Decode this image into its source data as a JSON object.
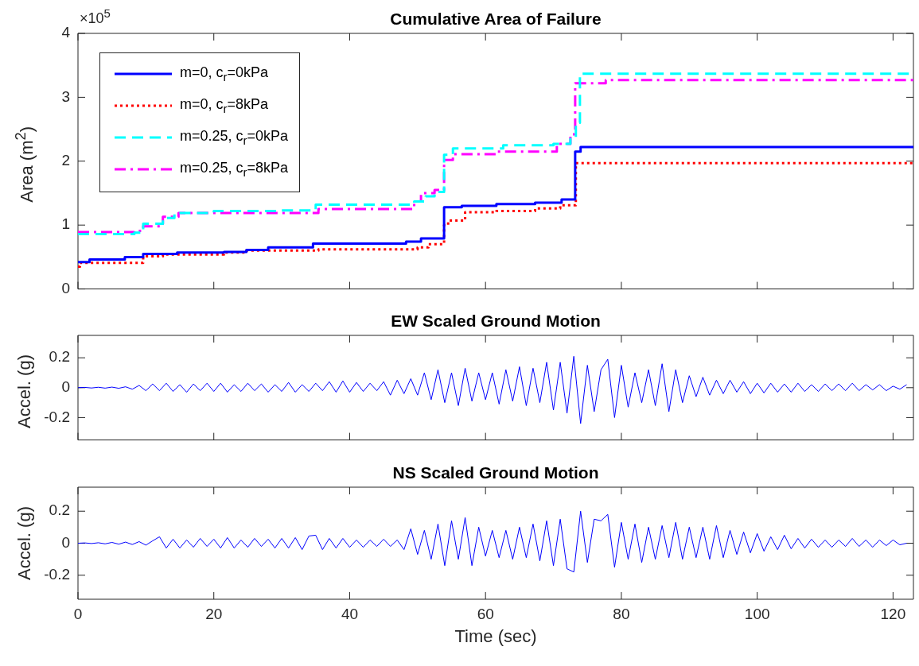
{
  "chart_data": [
    {
      "type": "step",
      "title": "Cumulative Area of Failure",
      "ylabel": "Area (m$^{2}$)",
      "annotations": [
        "×10$^{5}$"
      ],
      "xlim": [
        0,
        123
      ],
      "xticks": [
        0,
        20,
        40,
        60,
        80,
        100,
        120
      ],
      "ylim": [
        0,
        4
      ],
      "yticks": [
        0,
        1,
        2,
        3,
        4
      ],
      "tick_labels": "y",
      "legend": "top left",
      "series": [
        {
          "name": "m=0, c$_{r}$=0kPa",
          "color": "#0000ff",
          "line_style": "solid",
          "x": [
            0,
            1.7,
            6.9,
            9.6,
            14.6,
            21.5,
            24.8,
            28,
            34.6,
            48.3,
            50.5,
            53.9,
            56.5,
            61.6,
            67.3,
            71.2,
            73.2,
            74,
            123
          ],
          "values": [
            0.42,
            0.46,
            0.5,
            0.55,
            0.57,
            0.58,
            0.61,
            0.65,
            0.71,
            0.74,
            0.79,
            1.28,
            1.3,
            1.33,
            1.35,
            1.4,
            2.15,
            2.22,
            2.22
          ]
        },
        {
          "name": "m=0, c$_{r}$=8kPa",
          "color": "#ff0000",
          "line_style": "dotted",
          "x": [
            0,
            0.3,
            9.6,
            12.5,
            21.5,
            24.8,
            35.4,
            50,
            51.6,
            53.9,
            54.5,
            57,
            61.6,
            67.3,
            71,
            73.3,
            123
          ],
          "values": [
            0.35,
            0.41,
            0.51,
            0.54,
            0.57,
            0.6,
            0.62,
            0.65,
            0.7,
            1,
            1.07,
            1.2,
            1.22,
            1.26,
            1.31,
            1.97,
            1.97
          ]
        },
        {
          "name": "m=0.25, c$_{r}$=0kPa",
          "color": "#00ffff",
          "line_style": "dashed",
          "x": [
            0,
            8.3,
            9.6,
            12.5,
            14.2,
            20,
            30,
            35,
            49.5,
            51.2,
            52.5,
            53.9,
            55.2,
            62.6,
            70,
            72.5,
            73.3,
            73.9,
            123
          ],
          "values": [
            0.86,
            0.88,
            1.02,
            1.11,
            1.19,
            1.22,
            1.23,
            1.32,
            1.37,
            1.45,
            1.52,
            2.1,
            2.2,
            2.25,
            2.27,
            2.35,
            2.6,
            3.37,
            3.37
          ]
        },
        {
          "name": "m=0.25, c$_{r}$=8kPa",
          "color": "#ff00ff",
          "line_style": "dashdot",
          "x": [
            0,
            8.3,
            9.6,
            12.4,
            12.5,
            14.8,
            35.4,
            49.5,
            50.5,
            52.5,
            53.9,
            55.2,
            61.7,
            70.5,
            72.5,
            73.2,
            77.7,
            123
          ],
          "values": [
            0.89,
            0.91,
            0.98,
            1.02,
            1.13,
            1.19,
            1.25,
            1.37,
            1.5,
            1.55,
            2.02,
            2.11,
            2.15,
            2.27,
            2.42,
            3.22,
            3.27,
            3.27
          ]
        }
      ]
    },
    {
      "type": "line",
      "title": "EW Scaled Ground Motion",
      "ylabel": "Accel. (g)",
      "xlim": [
        0,
        123
      ],
      "xticks": [
        0,
        20,
        40,
        60,
        80,
        100,
        120
      ],
      "ylim": [
        -0.35,
        0.35
      ],
      "yticks": [
        -0.2,
        0,
        0.2
      ],
      "tick_labels": "y",
      "x": [
        0,
        1,
        2,
        3,
        4,
        5,
        6,
        7,
        8,
        9,
        10,
        11,
        12,
        13,
        14,
        15,
        16,
        17,
        18,
        19,
        20,
        21,
        22,
        23,
        24,
        25,
        26,
        27,
        28,
        29,
        30,
        31,
        32,
        33,
        34,
        35,
        36,
        37,
        38,
        39,
        40,
        41,
        42,
        43,
        44,
        45,
        46,
        47,
        48,
        49,
        50,
        51,
        52,
        53,
        54,
        55,
        56,
        57,
        58,
        59,
        60,
        61,
        62,
        63,
        64,
        65,
        66,
        67,
        68,
        69,
        70,
        71,
        72,
        73,
        74,
        75,
        76,
        77,
        78,
        79,
        80,
        81,
        82,
        83,
        84,
        85,
        86,
        87,
        88,
        89,
        90,
        91,
        92,
        93,
        94,
        95,
        96,
        97,
        98,
        99,
        100,
        101,
        102,
        103,
        104,
        105,
        106,
        107,
        108,
        109,
        110,
        111,
        112,
        113,
        114,
        115,
        116,
        117,
        118,
        119,
        120,
        121,
        122
      ],
      "series": [
        {
          "color": "#0000ff",
          "values": [
            0,
            0.002,
            -0.002,
            0.003,
            -0.003,
            0.004,
            -0.004,
            0.006,
            -0.01,
            0.015,
            -0.02,
            0.025,
            -0.02,
            0.03,
            -0.025,
            0.02,
            -0.03,
            0.025,
            -0.02,
            0.03,
            -0.025,
            0.03,
            -0.03,
            0.02,
            -0.025,
            0.03,
            -0.02,
            0.025,
            -0.03,
            0.02,
            -0.025,
            0.035,
            -0.03,
            0.02,
            -0.025,
            0.03,
            -0.02,
            0.04,
            -0.03,
            0.045,
            -0.03,
            0.035,
            -0.025,
            0.03,
            -0.02,
            0.04,
            -0.05,
            0.05,
            -0.04,
            0.06,
            -0.05,
            0.1,
            -0.08,
            0.12,
            -0.1,
            0.1,
            -0.12,
            0.13,
            -0.09,
            0.1,
            -0.08,
            0.1,
            -0.11,
            0.12,
            -0.09,
            0.14,
            -0.12,
            0.13,
            -0.1,
            0.17,
            -0.15,
            0.17,
            -0.17,
            0.21,
            -0.24,
            0.15,
            -0.16,
            0.12,
            0.19,
            -0.2,
            0.15,
            -0.13,
            0.1,
            -0.1,
            0.12,
            -0.12,
            0.16,
            -0.16,
            0.12,
            -0.1,
            0.08,
            -0.06,
            0.07,
            -0.05,
            0.05,
            -0.04,
            0.05,
            -0.03,
            0.04,
            -0.04,
            0.03,
            -0.035,
            0.03,
            -0.03,
            0.025,
            -0.03,
            0.03,
            -0.025,
            0.02,
            -0.025,
            0.025,
            -0.02,
            0.025,
            -0.02,
            0.03,
            -0.02,
            0.02,
            -0.015,
            0.02,
            -0.02,
            0.01,
            -0.01,
            0.02
          ]
        }
      ]
    },
    {
      "type": "line",
      "title": "NS Scaled Ground Motion",
      "ylabel": "Accel. (g)",
      "xlabel": "Time (sec)",
      "xlim": [
        0,
        123
      ],
      "xticks": [
        0,
        20,
        40,
        60,
        80,
        100,
        120
      ],
      "ylim": [
        -0.35,
        0.35
      ],
      "yticks": [
        -0.2,
        0,
        0.2
      ],
      "x": [
        0,
        1,
        2,
        3,
        4,
        5,
        6,
        7,
        8,
        9,
        10,
        11,
        12,
        13,
        14,
        15,
        16,
        17,
        18,
        19,
        20,
        21,
        22,
        23,
        24,
        25,
        26,
        27,
        28,
        29,
        30,
        31,
        32,
        33,
        34,
        35,
        36,
        37,
        38,
        39,
        40,
        41,
        42,
        43,
        44,
        45,
        46,
        47,
        48,
        49,
        50,
        51,
        52,
        53,
        54,
        55,
        56,
        57,
        58,
        59,
        60,
        61,
        62,
        63,
        64,
        65,
        66,
        67,
        68,
        69,
        70,
        71,
        72,
        73,
        74,
        75,
        76,
        77,
        78,
        79,
        80,
        81,
        82,
        83,
        84,
        85,
        86,
        87,
        88,
        89,
        90,
        91,
        92,
        93,
        94,
        95,
        96,
        97,
        98,
        99,
        100,
        101,
        102,
        103,
        104,
        105,
        106,
        107,
        108,
        109,
        110,
        111,
        112,
        113,
        114,
        115,
        116,
        117,
        118,
        119,
        120,
        121,
        122
      ],
      "series": [
        {
          "color": "#0000ff",
          "values": [
            0,
            0.002,
            -0.002,
            0.003,
            -0.004,
            0.005,
            -0.006,
            0.007,
            -0.008,
            0.01,
            -0.012,
            0.015,
            0.04,
            -0.03,
            0.025,
            -0.03,
            0.02,
            -0.025,
            0.03,
            -0.02,
            0.025,
            -0.03,
            0.035,
            -0.03,
            0.02,
            -0.025,
            0.03,
            -0.02,
            0.025,
            -0.03,
            0.03,
            -0.03,
            0.035,
            -0.04,
            0.045,
            0.05,
            -0.04,
            0.03,
            -0.03,
            0.03,
            -0.025,
            0.02,
            -0.025,
            0.02,
            -0.02,
            0.025,
            -0.02,
            0.02,
            -0.04,
            0.09,
            -0.07,
            0.08,
            -0.1,
            0.12,
            -0.14,
            0.14,
            -0.1,
            0.16,
            -0.14,
            0.1,
            -0.08,
            0.08,
            -0.09,
            0.08,
            -0.1,
            0.1,
            -0.09,
            0.12,
            -0.11,
            0.14,
            -0.14,
            0.15,
            -0.16,
            -0.18,
            0.2,
            -0.12,
            0.15,
            0.14,
            0.18,
            -0.15,
            0.13,
            -0.1,
            0.12,
            -0.12,
            0.1,
            -0.1,
            0.11,
            -0.09,
            0.13,
            -0.1,
            0.1,
            -0.09,
            0.1,
            -0.1,
            0.11,
            -0.09,
            0.08,
            -0.07,
            0.07,
            -0.06,
            0.06,
            -0.05,
            0.04,
            -0.04,
            0.05,
            -0.035,
            0.03,
            -0.03,
            0.025,
            -0.025,
            0.02,
            -0.025,
            0.02,
            -0.02,
            0.03,
            -0.02,
            0.02,
            -0.025,
            0.02,
            -0.015,
            0.02,
            -0.01,
            0
          ]
        }
      ]
    }
  ]
}
